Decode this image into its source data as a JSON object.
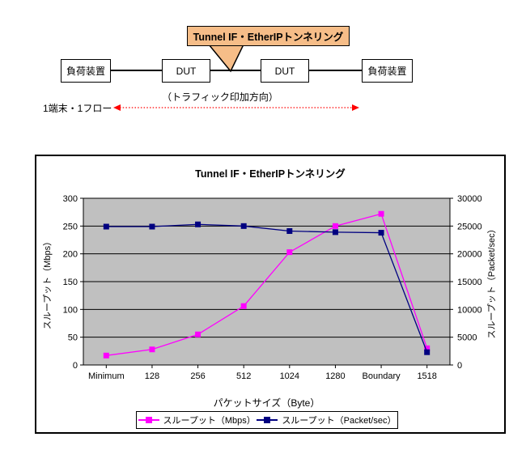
{
  "diagram": {
    "callout_label": "Tunnel IF・EtherIPトンネリング",
    "callout_fill": "#f6bd88",
    "nodes": [
      "負荷装置",
      "DUT",
      "DUT",
      "負荷装置"
    ],
    "traffic_direction_label": "（トラフィック印加方向）",
    "flow_label": "1端末・1フロー",
    "arrow_color": "#ff0000"
  },
  "chart_data": {
    "type": "line",
    "title": "Tunnel IF・EtherIPトンネリング",
    "categories": [
      "Minimum",
      "128",
      "256",
      "512",
      "1024",
      "1280",
      "Boundary",
      "1518"
    ],
    "series": [
      {
        "name": "スループット（Mbps）",
        "axis": "left",
        "color": "#ff00ff",
        "values": [
          17,
          28,
          55,
          106,
          203,
          250,
          272,
          30
        ]
      },
      {
        "name": "スループット（Packet/sec）",
        "axis": "right",
        "color": "#000080",
        "values": [
          24900,
          24900,
          25300,
          25000,
          24100,
          23900,
          23800,
          2300
        ]
      }
    ],
    "xlabel": "パケットサイズ（Byte）",
    "ylabel_left": "スループット（Mbps）",
    "ylabel_right": "スループット（Packet/sec）",
    "ylim_left": [
      0,
      300
    ],
    "ylim_right": [
      0,
      30000
    ],
    "yticks_left": [
      0,
      50,
      100,
      150,
      200,
      250,
      300
    ],
    "yticks_right": [
      0,
      5000,
      10000,
      15000,
      20000,
      25000,
      30000
    ],
    "plot_bg": "#c0c0c0",
    "grid": true,
    "marker": "square",
    "legend_position": "bottom"
  }
}
